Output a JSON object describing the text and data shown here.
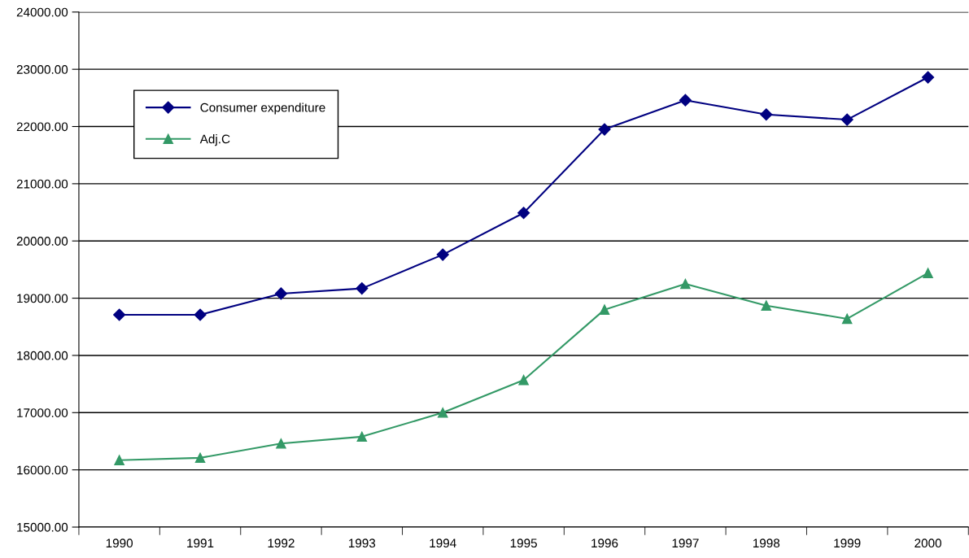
{
  "chart_data": {
    "type": "line",
    "categories": [
      "1990",
      "1991",
      "1992",
      "1993",
      "1994",
      "1995",
      "1996",
      "1997",
      "1998",
      "1999",
      "2000"
    ],
    "series": [
      {
        "name": "Consumer expenditure",
        "color": "#000080",
        "marker": "diamond",
        "values": [
          18710,
          18710,
          19080,
          19170,
          19760,
          20490,
          21950,
          22460,
          22210,
          22120,
          22860
        ]
      },
      {
        "name": "Adj.C",
        "color": "#339966",
        "marker": "triangle",
        "values": [
          16170,
          16210,
          16460,
          16580,
          17000,
          17570,
          18800,
          19250,
          18870,
          18640,
          19440
        ]
      }
    ],
    "ylim": [
      15000,
      24000
    ],
    "yticks": [
      {
        "value": 15000,
        "label": "15000.00"
      },
      {
        "value": 16000,
        "label": "16000.00"
      },
      {
        "value": 17000,
        "label": "17000.00"
      },
      {
        "value": 18000,
        "label": "18000.00"
      },
      {
        "value": 19000,
        "label": "19000.00"
      },
      {
        "value": 20000,
        "label": "20000.00"
      },
      {
        "value": 21000,
        "label": "21000.00"
      },
      {
        "value": 22000,
        "label": "22000.00"
      },
      {
        "value": 23000,
        "label": "23000.00"
      },
      {
        "value": 24000,
        "label": "24000.00"
      }
    ],
    "grid": "y",
    "legend": "top left",
    "line_style": "solid"
  }
}
